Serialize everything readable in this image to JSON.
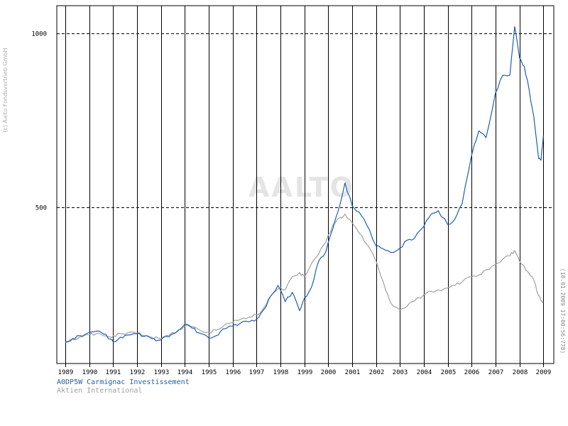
{
  "copyright": "(c) Aalto Fondsvertrieb GmbH",
  "watermark": "AALTO",
  "timestamp": "(18.01.2009 17:00:56:778)",
  "colors": {
    "primary_series": "#1f5fae",
    "secondary_series": "#a0a0a0",
    "grid": "#000000",
    "watermark": "#e4e4e4",
    "copyright": "#b0b0b0"
  },
  "chart_data": {
    "type": "line",
    "title": "",
    "xlabel": "",
    "ylabel": "",
    "xlim": [
      1989.0,
      2009.05
    ],
    "ylim": [
      50,
      1080
    ],
    "x_ticks": [
      "1989",
      "1990",
      "1991",
      "1992",
      "1993",
      "1994",
      "1995",
      "1996",
      "1997",
      "1998",
      "1999",
      "2000",
      "2001",
      "2002",
      "2003",
      "2004",
      "2005",
      "2006",
      "2007",
      "2008",
      "2009"
    ],
    "y_ticks": [
      {
        "value": 500,
        "label": "500"
      },
      {
        "value": 1000,
        "label": "1000"
      }
    ],
    "grid": {
      "vertical": true,
      "horizontal": "dashed at 500 and 1000"
    },
    "legend_position": "bottom-left",
    "series": [
      {
        "name": "A0DP5W Carmignac Investissement",
        "color": "#1f5fae",
        "x": [
          1989.0,
          1989.3,
          1989.6,
          1990.0,
          1990.3,
          1990.6,
          1990.9,
          1991.0,
          1991.3,
          1991.6,
          1992.0,
          1992.3,
          1992.6,
          1992.9,
          1993.2,
          1993.6,
          1994.0,
          1994.3,
          1994.6,
          1995.0,
          1995.3,
          1995.6,
          1996.0,
          1996.3,
          1996.7,
          1997.0,
          1997.3,
          1997.6,
          1997.9,
          1998.2,
          1998.5,
          1998.8,
          1999.0,
          1999.3,
          1999.6,
          1999.9,
          2000.2,
          2000.5,
          2000.7,
          2001.0,
          2001.3,
          2001.6,
          2002.0,
          2002.3,
          2002.6,
          2003.0,
          2003.3,
          2003.6,
          2004.0,
          2004.3,
          2004.6,
          2005.0,
          2005.3,
          2005.6,
          2006.0,
          2006.3,
          2006.6,
          2007.0,
          2007.3,
          2007.6,
          2007.8,
          2008.0,
          2008.2,
          2008.4,
          2008.6,
          2008.8,
          2008.9,
          2009.0
        ],
        "values": [
          110,
          122,
          130,
          140,
          143,
          135,
          120,
          112,
          126,
          132,
          136,
          128,
          122,
          117,
          128,
          138,
          163,
          152,
          138,
          124,
          130,
          150,
          158,
          165,
          170,
          177,
          205,
          245,
          275,
          228,
          255,
          202,
          238,
          270,
          345,
          372,
          440,
          510,
          570,
          505,
          485,
          450,
          388,
          380,
          370,
          382,
          405,
          410,
          445,
          480,
          490,
          450,
          466,
          510,
          650,
          720,
          700,
          830,
          880,
          880,
          1020,
          930,
          905,
          840,
          760,
          640,
          635,
          705
        ]
      },
      {
        "name": "Aktien International",
        "color": "#a0a0a0",
        "x": [
          1989.0,
          1989.3,
          1989.6,
          1990.0,
          1990.3,
          1990.6,
          1990.9,
          1991.0,
          1991.3,
          1991.6,
          1992.0,
          1992.3,
          1992.6,
          1992.9,
          1993.2,
          1993.6,
          1994.0,
          1994.3,
          1994.6,
          1995.0,
          1995.3,
          1995.6,
          1996.0,
          1996.3,
          1996.7,
          1997.0,
          1997.3,
          1997.6,
          1997.9,
          1998.2,
          1998.5,
          1998.8,
          1999.0,
          1999.3,
          1999.6,
          1999.9,
          2000.2,
          2000.5,
          2000.7,
          2001.0,
          2001.3,
          2001.6,
          2002.0,
          2002.3,
          2002.6,
          2003.0,
          2003.3,
          2003.6,
          2004.0,
          2004.3,
          2004.6,
          2005.0,
          2005.3,
          2005.6,
          2006.0,
          2006.3,
          2006.6,
          2007.0,
          2007.3,
          2007.6,
          2007.8,
          2008.0,
          2008.2,
          2008.4,
          2008.6,
          2008.8,
          2008.9,
          2009.0
        ],
        "values": [
          112,
          120,
          126,
          132,
          136,
          130,
          126,
          130,
          136,
          138,
          137,
          130,
          126,
          123,
          130,
          138,
          157,
          156,
          147,
          140,
          146,
          158,
          168,
          176,
          184,
          190,
          210,
          245,
          265,
          262,
          300,
          312,
          300,
          338,
          365,
          400,
          450,
          470,
          480,
          455,
          425,
          395,
          345,
          285,
          225,
          205,
          215,
          230,
          248,
          258,
          262,
          268,
          275,
          285,
          300,
          305,
          320,
          335,
          350,
          360,
          375,
          345,
          330,
          310,
          290,
          245,
          230,
          225
        ]
      }
    ]
  }
}
